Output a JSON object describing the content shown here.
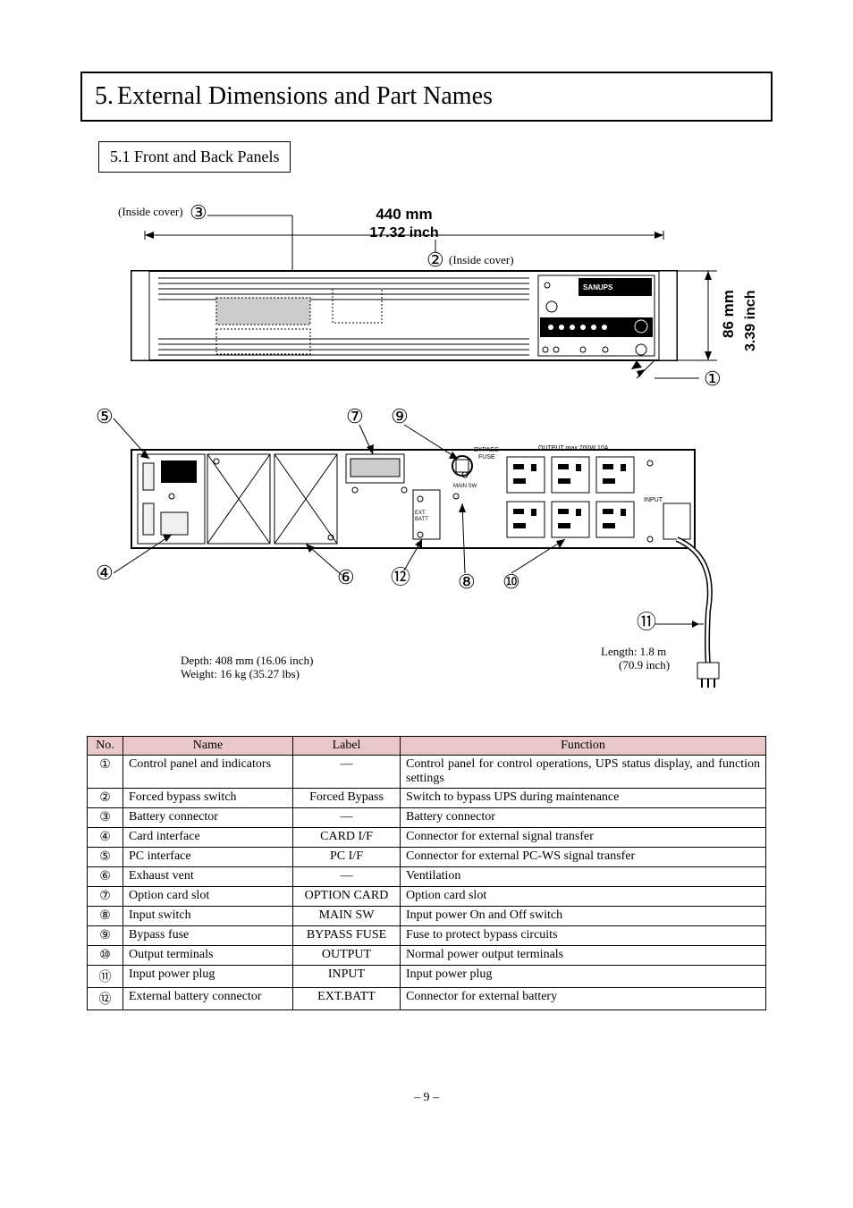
{
  "section": {
    "number": "5.",
    "title": "External Dimensions and Part Names"
  },
  "subsection": {
    "number": "5.1",
    "title": "Front and Back Panels"
  },
  "dimensions": {
    "width_mm": "440 mm",
    "width_inch": "17.32 inch",
    "height_mm": "86 mm",
    "height_inch": "3.39 inch",
    "depth": "Depth: 408 mm (16.06 inch)",
    "weight": "Weight: 16 kg (35.27 lbs)",
    "cable_length": "Length: 1.8 m",
    "cable_length_inch": "(70.9 inch)",
    "inside_cover_1": "(Inside cover)",
    "inside_cover_2": "(Inside cover)"
  },
  "callouts": {
    "1": "①",
    "2": "②",
    "3": "③",
    "4": "④",
    "5": "⑤",
    "6": "⑥",
    "7": "⑦",
    "8": "⑧",
    "9": "⑨",
    "10": "⑩",
    "11": "⑪",
    "12": "⑫"
  },
  "table": {
    "headers": {
      "no": "No.",
      "name": "Name",
      "label": "Label",
      "function": "Function"
    },
    "rows": [
      {
        "no": "①",
        "name": "Control panel and indicators",
        "label": "―",
        "function": "Control panel for control operations, UPS status display, and function settings"
      },
      {
        "no": "②",
        "name": "Forced bypass switch",
        "label": "Forced Bypass",
        "function": "Switch to bypass UPS during maintenance"
      },
      {
        "no": "③",
        "name": "Battery connector",
        "label": "―",
        "function": "Battery connector"
      },
      {
        "no": "④",
        "name": "Card interface",
        "label": "CARD I/F",
        "function": "Connector for external signal transfer"
      },
      {
        "no": "⑤",
        "name": "PC interface",
        "label": "PC I/F",
        "function": "Connector for external PC-WS signal transfer"
      },
      {
        "no": "⑥",
        "name": "Exhaust vent",
        "label": "―",
        "function": "Ventilation"
      },
      {
        "no": "⑦",
        "name": "Option card slot",
        "label": "OPTION CARD",
        "function": "Option card slot"
      },
      {
        "no": "⑧",
        "name": "Input switch",
        "label": "MAIN SW",
        "function": "Input power On and Off switch"
      },
      {
        "no": "⑨",
        "name": "Bypass fuse",
        "label": "BYPASS FUSE",
        "function": "Fuse to protect bypass circuits"
      },
      {
        "no": "⑩",
        "name": "Output terminals",
        "label": "OUTPUT",
        "function": "Normal power output terminals"
      },
      {
        "no": "⑪",
        "name": "Input power plug",
        "label": "INPUT",
        "function": "Input power plug"
      },
      {
        "no": "⑫",
        "name": "External battery connector",
        "label": "EXT.BATT",
        "function": "Connector for external battery"
      }
    ]
  },
  "page_number": "– 9 –",
  "colors": {
    "header_bg": "#e8c8c8",
    "line": "#000000",
    "fill_grey": "#cccccc",
    "fill_light": "#f0f0f0"
  }
}
